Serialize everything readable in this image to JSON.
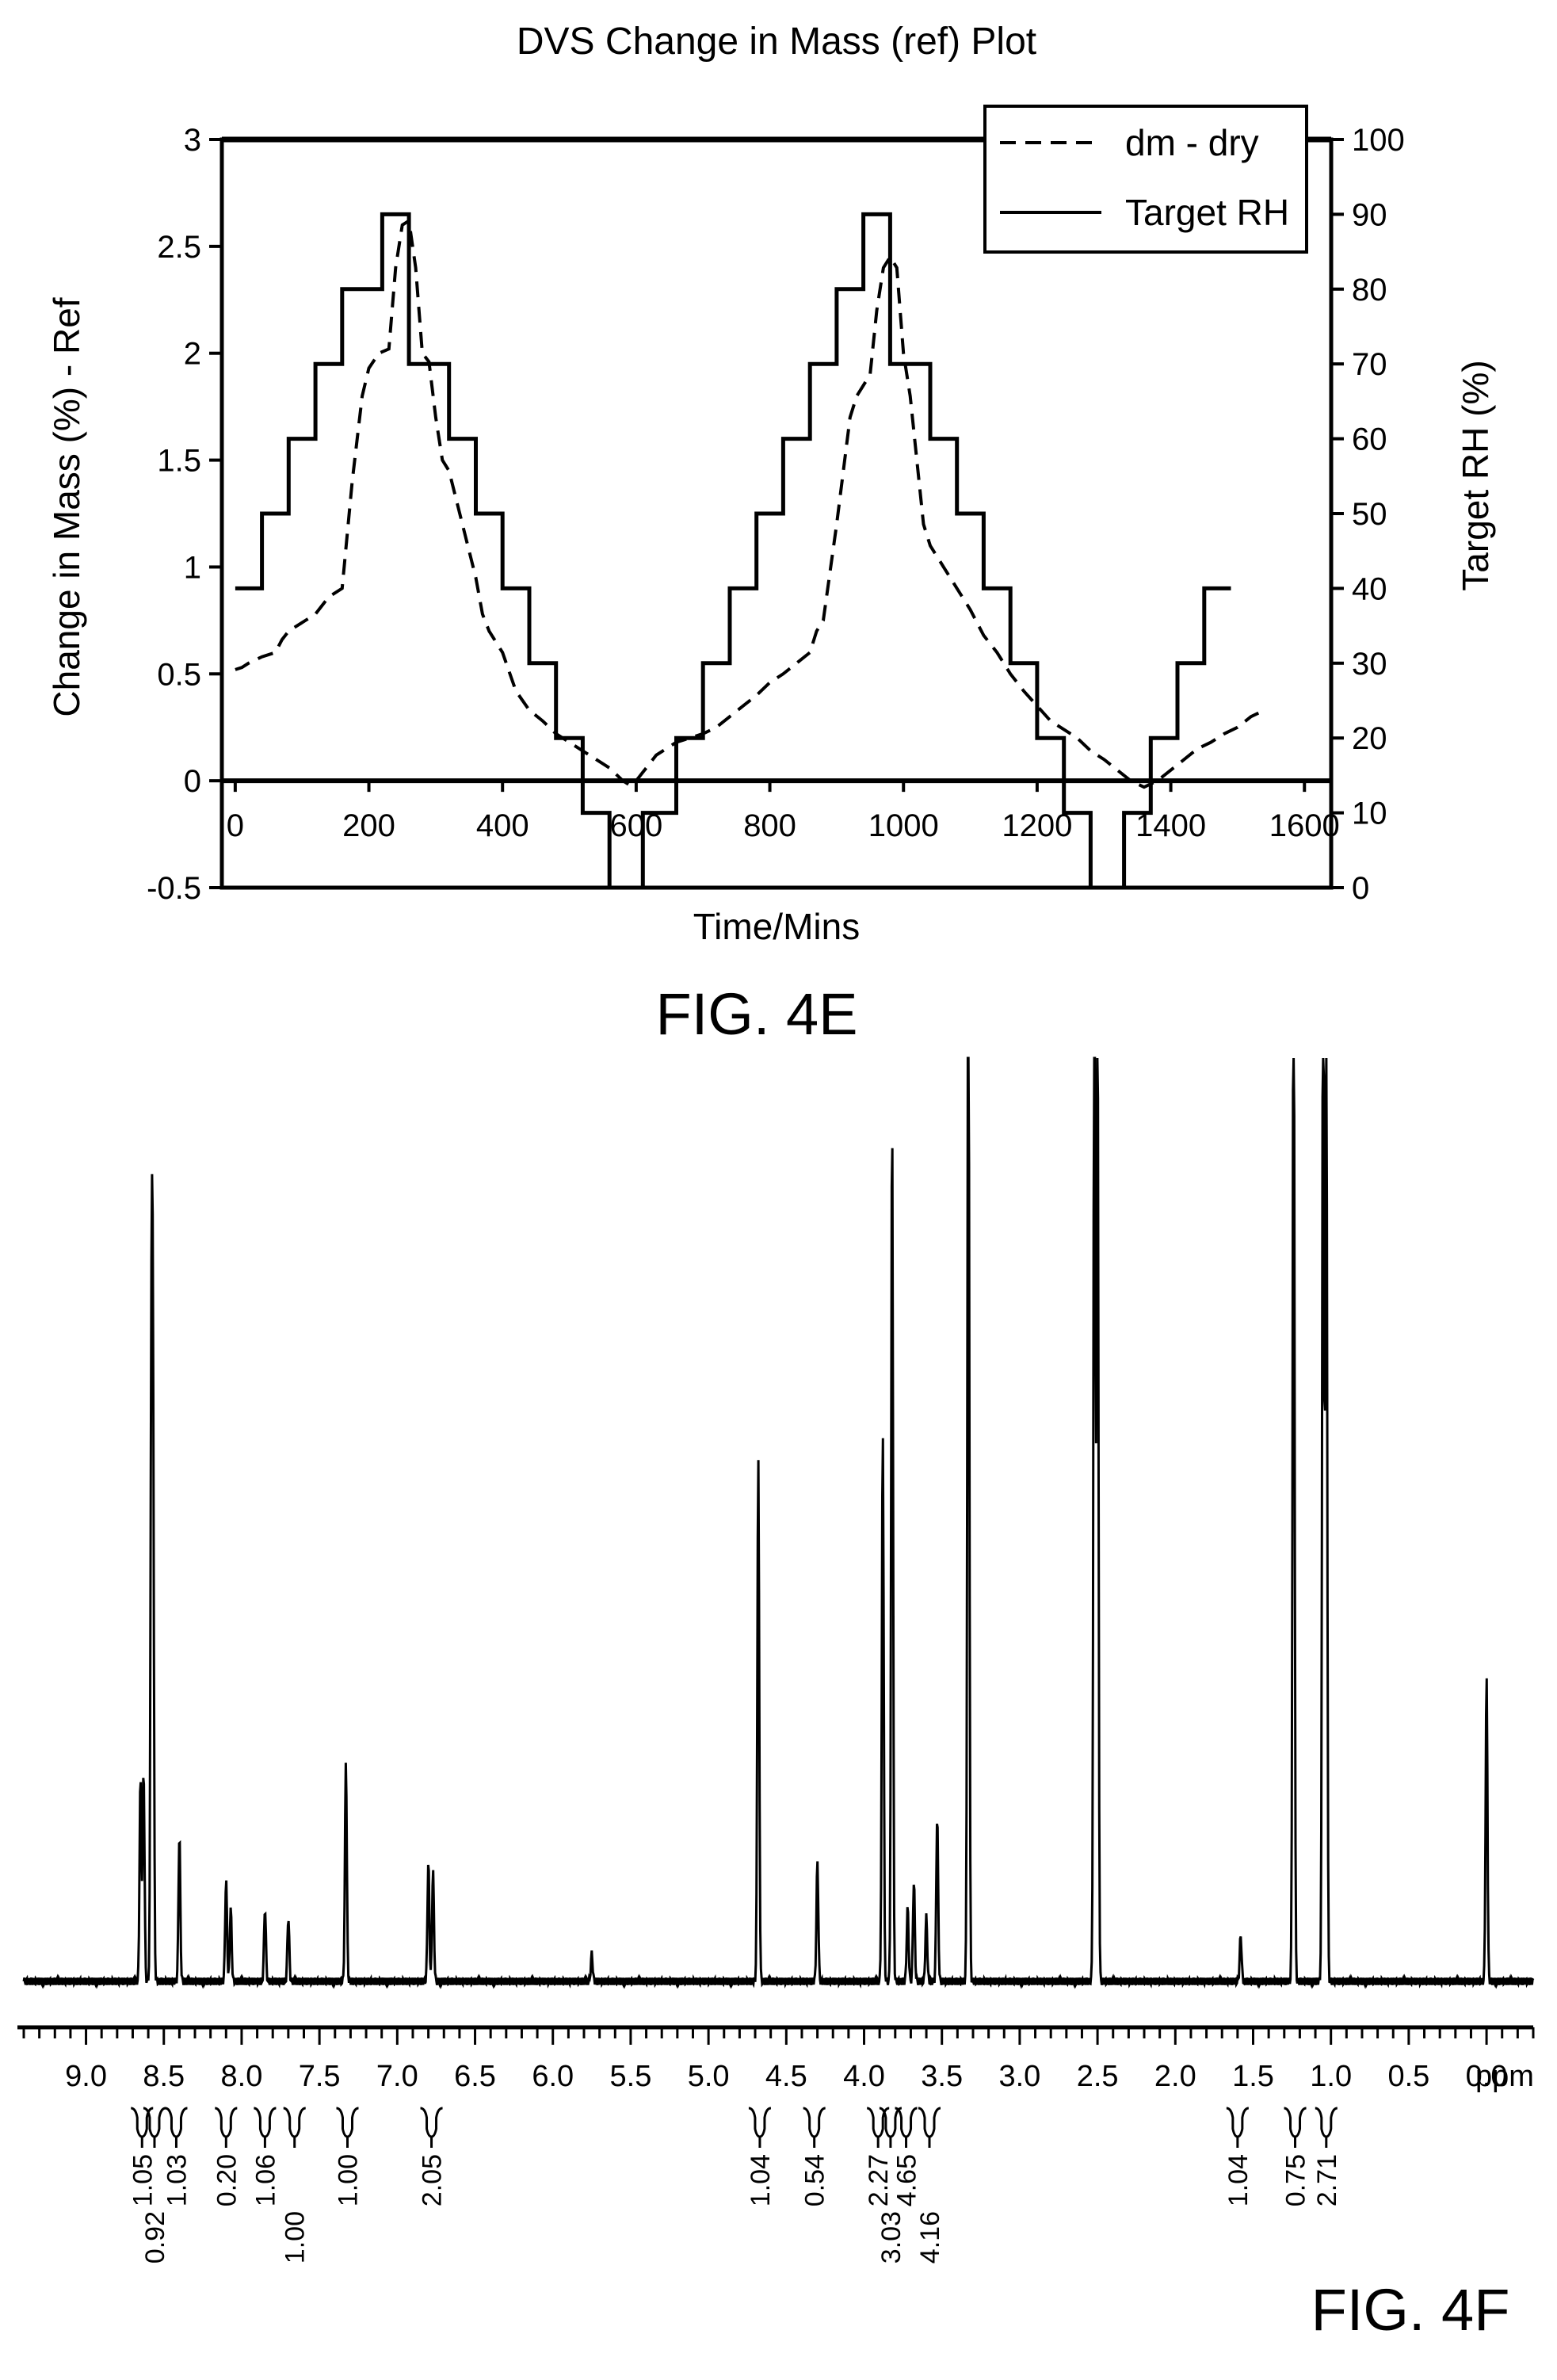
{
  "figures": {
    "top_label": "FIG. 4E",
    "bottom_label": "FIG. 4F"
  },
  "chart_data": [
    {
      "type": "line",
      "title": "DVS Change in Mass (ref) Plot",
      "xlabel": "Time/Mins",
      "ylabel": "Change in Mass (%) - Ref",
      "y2label": "Target RH (%)",
      "xlim": [
        -20,
        1640
      ],
      "ylim": [
        -0.5,
        3
      ],
      "y2lim": [
        0,
        100
      ],
      "x_ticks": [
        "0",
        "200",
        "400",
        "600",
        "800",
        "1000",
        "1200",
        "1400",
        "1600"
      ],
      "y_ticks": [
        "-0.5",
        "0",
        "0.5",
        "1",
        "1.5",
        "2",
        "2.5",
        "3"
      ],
      "y2_ticks": [
        "0",
        "10",
        "20",
        "30",
        "40",
        "50",
        "60",
        "70",
        "80",
        "90",
        "100"
      ],
      "legend_position": "top-right",
      "series": [
        {
          "name": "dm - dry",
          "axis": "left",
          "style": "dashed",
          "x": [
            0,
            10,
            20,
            40,
            60,
            70,
            80,
            100,
            120,
            130,
            140,
            160,
            175,
            190,
            200,
            215,
            230,
            240,
            250,
            260,
            270,
            280,
            290,
            300,
            310,
            320,
            340,
            360,
            370,
            380,
            400,
            420,
            440,
            460,
            480,
            500,
            520,
            540,
            560,
            580,
            590,
            600,
            610,
            620,
            630,
            640,
            660,
            680,
            700,
            720,
            740,
            760,
            780,
            800,
            820,
            840,
            860,
            870,
            880,
            900,
            920,
            930,
            950,
            960,
            970,
            980,
            990,
            1000,
            1010,
            1020,
            1030,
            1040,
            1060,
            1080,
            1100,
            1120,
            1140,
            1160,
            1180,
            1200,
            1220,
            1240,
            1260,
            1280,
            1300,
            1320,
            1340,
            1360,
            1380,
            1400,
            1420,
            1440,
            1460,
            1480,
            1500,
            1520,
            1540
          ],
          "y": [
            0.52,
            0.53,
            0.55,
            0.58,
            0.6,
            0.66,
            0.7,
            0.74,
            0.78,
            0.82,
            0.86,
            0.9,
            1.4,
            1.8,
            1.93,
            2.0,
            2.02,
            2.4,
            2.6,
            2.62,
            2.4,
            2.0,
            1.96,
            1.7,
            1.5,
            1.45,
            1.2,
            0.95,
            0.78,
            0.7,
            0.6,
            0.42,
            0.33,
            0.28,
            0.22,
            0.18,
            0.14,
            0.1,
            0.06,
            0.0,
            -0.02,
            0.0,
            0.04,
            0.08,
            0.12,
            0.14,
            0.18,
            0.2,
            0.22,
            0.25,
            0.3,
            0.35,
            0.4,
            0.46,
            0.5,
            0.55,
            0.6,
            0.7,
            0.75,
            1.2,
            1.7,
            1.8,
            1.9,
            2.2,
            2.4,
            2.45,
            2.4,
            2.0,
            1.8,
            1.5,
            1.2,
            1.1,
            1.0,
            0.9,
            0.8,
            0.68,
            0.6,
            0.5,
            0.42,
            0.35,
            0.28,
            0.24,
            0.2,
            0.14,
            0.1,
            0.05,
            0.0,
            -0.03,
            0.0,
            0.05,
            0.1,
            0.15,
            0.18,
            0.22,
            0.25,
            0.3,
            0.33
          ]
        },
        {
          "name": "Target RH",
          "axis": "right",
          "style": "solid",
          "steps": [
            [
              0,
              40
            ],
            [
              40,
              50
            ],
            [
              80,
              60
            ],
            [
              120,
              70
            ],
            [
              160,
              80
            ],
            [
              220,
              90
            ],
            [
              260,
              70
            ],
            [
              320,
              60
            ],
            [
              360,
              50
            ],
            [
              400,
              40
            ],
            [
              440,
              30
            ],
            [
              480,
              20
            ],
            [
              520,
              10
            ],
            [
              560,
              0
            ],
            [
              610,
              10
            ],
            [
              660,
              20
            ],
            [
              700,
              30
            ],
            [
              740,
              40
            ],
            [
              780,
              50
            ],
            [
              820,
              60
            ],
            [
              860,
              70
            ],
            [
              900,
              80
            ],
            [
              940,
              90
            ],
            [
              980,
              70
            ],
            [
              1040,
              60
            ],
            [
              1080,
              50
            ],
            [
              1120,
              40
            ],
            [
              1160,
              30
            ],
            [
              1200,
              20
            ],
            [
              1240,
              10
            ],
            [
              1280,
              0
            ],
            [
              1330,
              10
            ],
            [
              1370,
              20
            ],
            [
              1410,
              30
            ],
            [
              1450,
              40
            ],
            [
              1490,
              40
            ]
          ]
        }
      ]
    },
    {
      "type": "line",
      "title": "",
      "xlabel": "ppm",
      "xlim": [
        9.4,
        -0.3
      ],
      "reverse_x": true,
      "x_ticks": [
        "9.0",
        "8.5",
        "8.0",
        "7.5",
        "7.0",
        "6.5",
        "6.0",
        "5.5",
        "5.0",
        "4.5",
        "4.0",
        "3.5",
        "3.0",
        "2.5",
        "2.0",
        "1.5",
        "1.0",
        "0.5",
        "0.0"
      ],
      "peaks": [
        {
          "ppm": 8.65,
          "h": 0.22
        },
        {
          "ppm": 8.63,
          "h": 0.23
        },
        {
          "ppm": 8.58,
          "h": 0.61
        },
        {
          "ppm": 8.57,
          "h": 0.63
        },
        {
          "ppm": 8.4,
          "h": 0.16
        },
        {
          "ppm": 8.1,
          "h": 0.11
        },
        {
          "ppm": 8.07,
          "h": 0.08
        },
        {
          "ppm": 7.85,
          "h": 0.08
        },
        {
          "ppm": 7.7,
          "h": 0.07
        },
        {
          "ppm": 7.33,
          "h": 0.24
        },
        {
          "ppm": 6.8,
          "h": 0.13
        },
        {
          "ppm": 6.77,
          "h": 0.12
        },
        {
          "ppm": 5.75,
          "h": 0.03
        },
        {
          "ppm": 4.68,
          "h": 0.57
        },
        {
          "ppm": 4.3,
          "h": 0.13
        },
        {
          "ppm": 3.88,
          "h": 0.6
        },
        {
          "ppm": 3.82,
          "h": 0.94
        },
        {
          "ppm": 3.72,
          "h": 0.08
        },
        {
          "ppm": 3.68,
          "h": 0.11
        },
        {
          "ppm": 3.6,
          "h": 0.07
        },
        {
          "ppm": 3.53,
          "h": 0.18
        },
        {
          "ppm": 3.33,
          "h": 1.2
        },
        {
          "ppm": 2.52,
          "h": 1.2
        },
        {
          "ppm": 2.5,
          "h": 1.1
        },
        {
          "ppm": 1.58,
          "h": 0.05
        },
        {
          "ppm": 1.24,
          "h": 1.2
        },
        {
          "ppm": 1.05,
          "h": 1.2
        },
        {
          "ppm": 1.03,
          "h": 1.1
        },
        {
          "ppm": 0.0,
          "h": 0.33
        }
      ],
      "integrals": [
        {
          "ppm": 8.64,
          "value": "1.05"
        },
        {
          "ppm": 8.56,
          "value": "0.92"
        },
        {
          "ppm": 8.42,
          "value": "1.03"
        },
        {
          "ppm": 8.1,
          "value": "0.20"
        },
        {
          "ppm": 7.85,
          "value": "1.06"
        },
        {
          "ppm": 7.66,
          "value": "1.00"
        },
        {
          "ppm": 7.32,
          "value": "1.00"
        },
        {
          "ppm": 6.78,
          "value": "2.05"
        },
        {
          "ppm": 4.67,
          "value": "1.04"
        },
        {
          "ppm": 4.32,
          "value": "0.54"
        },
        {
          "ppm": 3.91,
          "value": "2.27"
        },
        {
          "ppm": 3.83,
          "value": "3.03"
        },
        {
          "ppm": 3.73,
          "value": "4.65"
        },
        {
          "ppm": 3.58,
          "value": "4.16"
        },
        {
          "ppm": 1.6,
          "value": "1.04"
        },
        {
          "ppm": 1.23,
          "value": "0.75"
        },
        {
          "ppm": 1.03,
          "value": "2.71"
        }
      ]
    }
  ]
}
